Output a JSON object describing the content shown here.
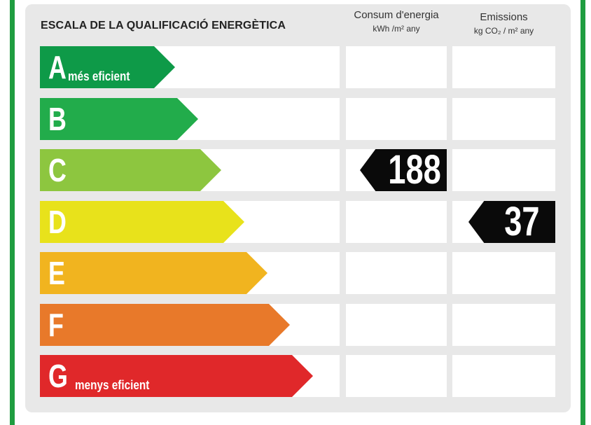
{
  "title": "ESCALA DE LA QUALIFICACIÓ ENERGÈTICA",
  "columns": {
    "energy": {
      "label": "Consum d'energia",
      "unit": "kWh /m² any"
    },
    "emissions": {
      "label": "Emissions",
      "unit": "kg CO₂ / m² any"
    }
  },
  "ratings": [
    {
      "letter": "A",
      "note": "més eficient",
      "color": "#0e9a48"
    },
    {
      "letter": "B",
      "note": "",
      "color": "#22ac4b"
    },
    {
      "letter": "C",
      "note": "",
      "color": "#8dc63f"
    },
    {
      "letter": "D",
      "note": "",
      "color": "#e8e21b"
    },
    {
      "letter": "E",
      "note": "",
      "color": "#f1b41f"
    },
    {
      "letter": "F",
      "note": "",
      "color": "#e8792a"
    },
    {
      "letter": "G",
      "note": "menys eficient",
      "color": "#e0282a"
    }
  ],
  "result": {
    "energy_value": "188",
    "energy_rating": "C",
    "emissions_value": "37",
    "emissions_rating": "D"
  }
}
